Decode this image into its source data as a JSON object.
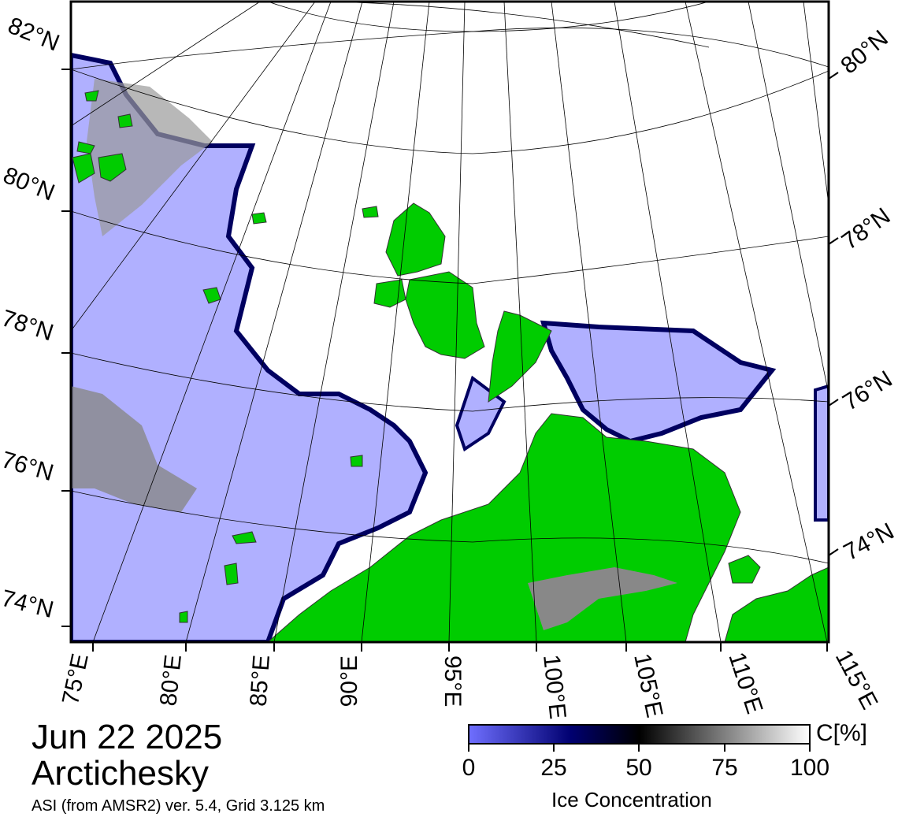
{
  "title": {
    "date": "Jun 22 2025",
    "region": "Arctichesky",
    "source": "ASI (from AMSR2) ver. 5.4,  Grid 3.125 km"
  },
  "map": {
    "longitude_labels": [
      "75°E",
      "80°E",
      "85°E",
      "90°E",
      "95°E",
      "100°E",
      "105°E",
      "110°E",
      "115°E"
    ],
    "latitude_labels_left": [
      "82°N",
      "80°N",
      "78°N",
      "76°N",
      "74°N"
    ],
    "latitude_labels_right": [
      "80°N",
      "78°N",
      "76°N",
      "74°N"
    ],
    "colors": {
      "open_water": "#b0b0ff",
      "ice_edge": "#000060",
      "ice_high": "#ffffff",
      "land": "#00cc00",
      "land_ice": "#888888",
      "graticule": "#000000"
    }
  },
  "colorbar": {
    "label": "Ice Concentration",
    "unit": "C[%]",
    "ticks": [
      "0",
      "25",
      "50",
      "75",
      "100"
    ],
    "range": [
      0,
      100
    ],
    "colors": [
      "#6f6fff",
      "#000070",
      "#000000",
      "#ffffff"
    ]
  }
}
